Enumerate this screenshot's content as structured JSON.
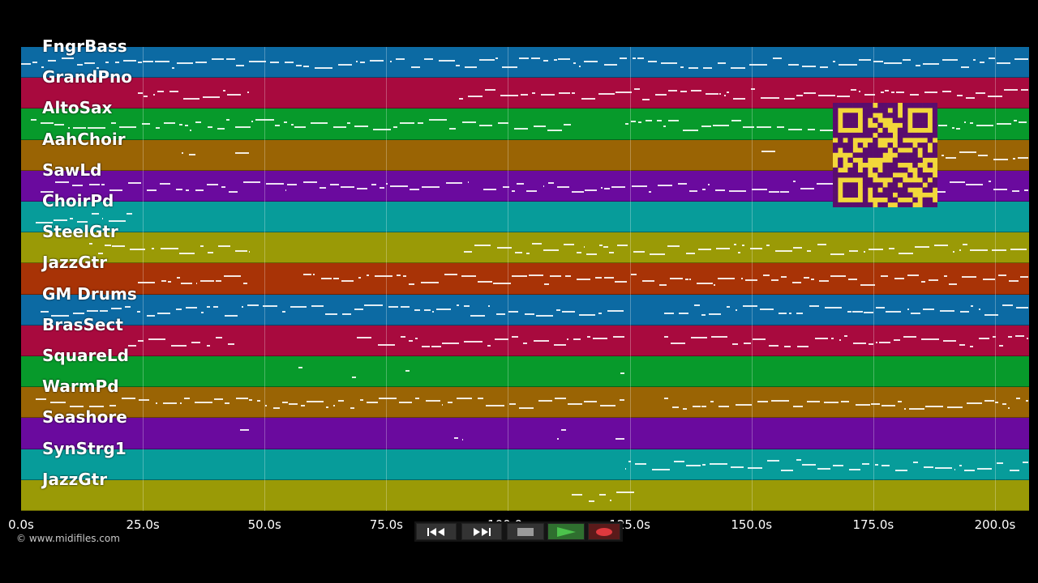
{
  "tracks": [
    {
      "name": "FngrBass",
      "color": "#0c6aa3"
    },
    {
      "name": "GrandPno",
      "color": "#a80a3e"
    },
    {
      "name": "AltoSax",
      "color": "#079a2b"
    },
    {
      "name": "AahChoir",
      "color": "#9a6404"
    },
    {
      "name": "SawLd",
      "color": "#6a0a9e"
    },
    {
      "name": "ChoirPd",
      "color": "#079c9a"
    },
    {
      "name": "SteelGtr",
      "color": "#9a9a06"
    },
    {
      "name": "JazzGtr",
      "color": "#a83306"
    },
    {
      "name": "GM Drums",
      "color": "#0c6aa3"
    },
    {
      "name": "BrasSect",
      "color": "#a80a3e"
    },
    {
      "name": "SquareLd",
      "color": "#079a2b"
    },
    {
      "name": "WarmPd",
      "color": "#9a6404"
    },
    {
      "name": "Seashore",
      "color": "#6a0a9e"
    },
    {
      "name": "SynStrg1",
      "color": "#079c9a"
    },
    {
      "name": "JazzGtr",
      "color": "#9a9a06"
    }
  ],
  "time_axis": {
    "unit": "s",
    "max_seconds": 207,
    "ticks": [
      "0.0s",
      "25.0s",
      "50.0s",
      "75.0s",
      "100.0s",
      "125.0s",
      "150.0s",
      "175.0s",
      "200.0s"
    ],
    "tick_values": [
      0,
      25,
      50,
      75,
      100,
      125,
      150,
      175,
      200
    ]
  },
  "note_segments": [
    {
      "track": 0,
      "ranges": [
        [
          0,
          25
        ],
        [
          25,
          207
        ]
      ]
    },
    {
      "track": 1,
      "ranges": [
        [
          24,
          47
        ],
        [
          90,
          207
        ]
      ]
    },
    {
      "track": 2,
      "ranges": [
        [
          2,
          113
        ],
        [
          124,
          207
        ]
      ]
    },
    {
      "track": 3,
      "ranges": [
        [
          33,
          36
        ],
        [
          44,
          47
        ],
        [
          152,
          155
        ],
        [
          189,
          207
        ]
      ]
    },
    {
      "track": 4,
      "ranges": [
        [
          4,
          92
        ],
        [
          95,
          207
        ]
      ]
    },
    {
      "track": 5,
      "ranges": [
        [
          3,
          23
        ]
      ]
    },
    {
      "track": 6,
      "ranges": [
        [
          14,
          47
        ],
        [
          91,
          207
        ]
      ]
    },
    {
      "track": 7,
      "ranges": [
        [
          24,
          47
        ],
        [
          58,
          207
        ]
      ]
    },
    {
      "track": 8,
      "ranges": [
        [
          4,
          124
        ],
        [
          132,
          207
        ]
      ]
    },
    {
      "track": 9,
      "ranges": [
        [
          22,
          44
        ],
        [
          69,
          124
        ],
        [
          132,
          207
        ]
      ]
    },
    {
      "track": 10,
      "ranges": [
        [
          57,
          58
        ],
        [
          68,
          69
        ],
        [
          79,
          80
        ],
        [
          123,
          124
        ]
      ]
    },
    {
      "track": 11,
      "ranges": [
        [
          3,
          124
        ],
        [
          132,
          207
        ]
      ]
    },
    {
      "track": 12,
      "ranges": [
        [
          45,
          47
        ],
        [
          89,
          91
        ],
        [
          110,
          112
        ],
        [
          122,
          124
        ]
      ]
    },
    {
      "track": 13,
      "ranges": [
        [
          124,
          207
        ]
      ]
    },
    {
      "track": 14,
      "ranges": [
        [
          113,
          126
        ]
      ]
    }
  ],
  "copyright": "© www.midifiles.com",
  "transport": {
    "buttons": [
      {
        "name": "rewind-button",
        "icon": "rewind-icon"
      },
      {
        "name": "fast-forward-button",
        "icon": "fast-forward-icon"
      },
      {
        "name": "stop-button",
        "icon": "stop-icon"
      },
      {
        "name": "play-button",
        "icon": "play-icon"
      },
      {
        "name": "record-button",
        "icon": "record-icon"
      }
    ]
  },
  "qr_code": {
    "icon": "qr-code-icon",
    "color": "#f2d73a",
    "module_color": "#5a0d6e"
  }
}
